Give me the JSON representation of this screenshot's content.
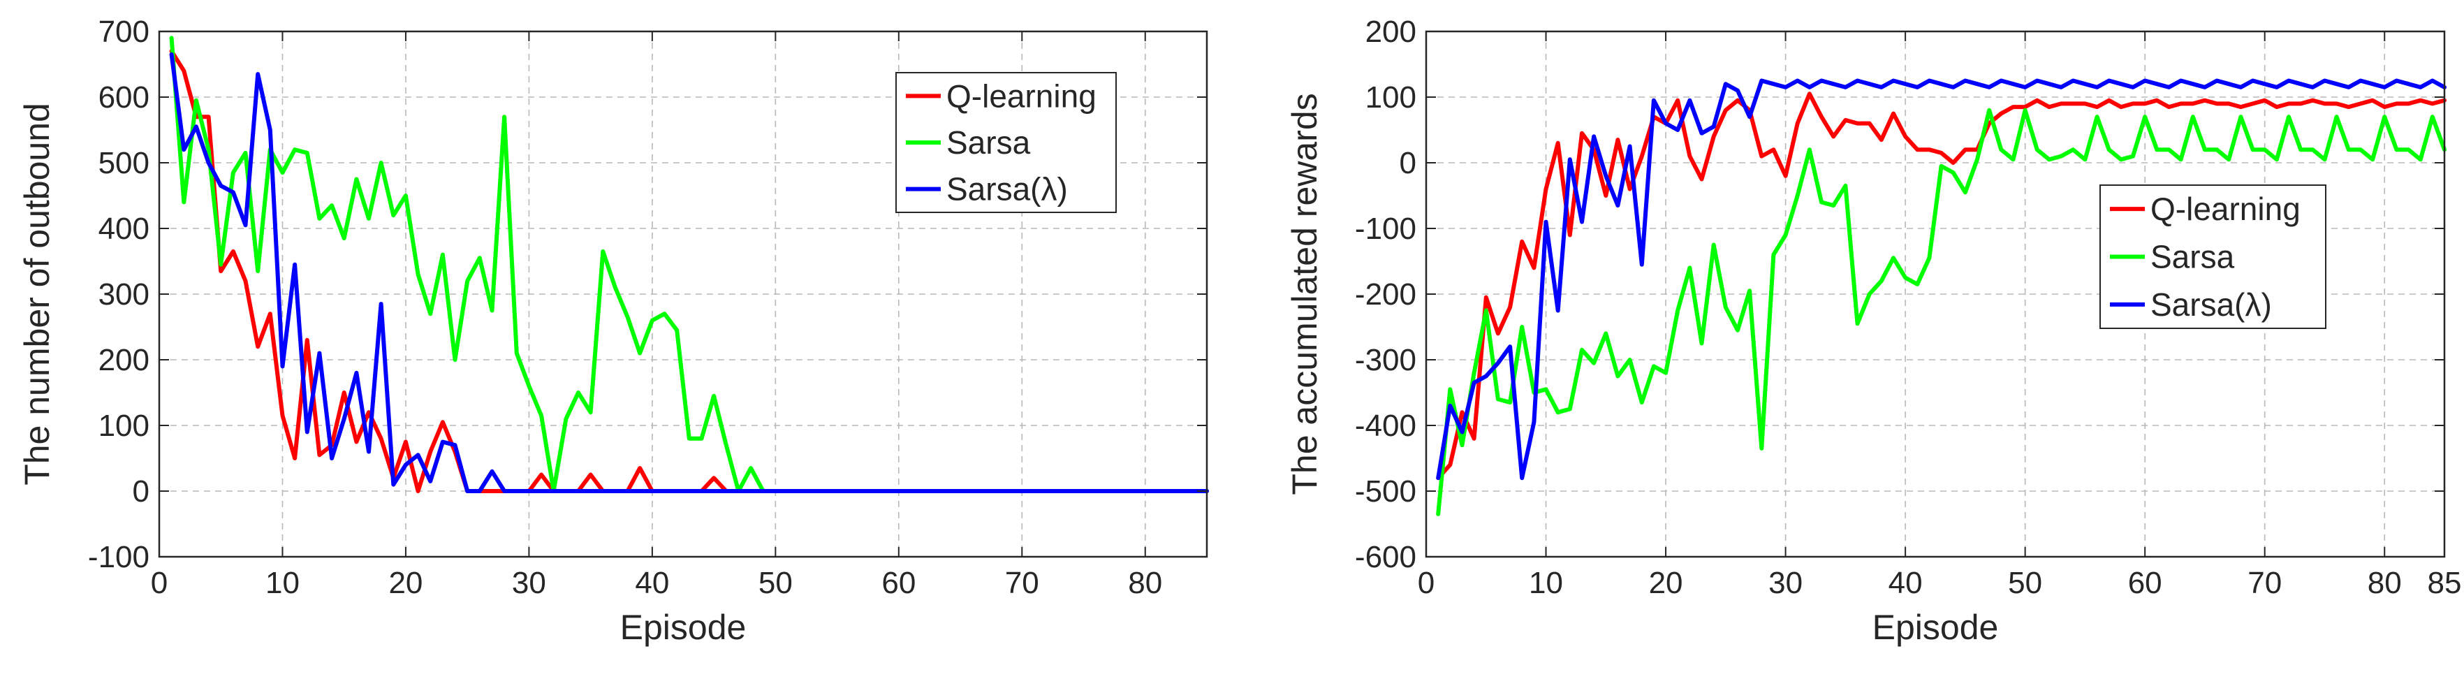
{
  "chart_data": [
    {
      "type": "line",
      "title": "",
      "xlabel": "Episode",
      "ylabel": "The number of outbound",
      "xlim": [
        0,
        85
      ],
      "ylim": [
        -100,
        700
      ],
      "xticks": [
        0,
        10,
        20,
        30,
        40,
        50,
        60,
        70,
        80
      ],
      "yticks": [
        -100,
        0,
        100,
        200,
        300,
        400,
        500,
        600,
        700
      ],
      "grid": true,
      "legend_position": "top-right",
      "x": [
        1,
        2,
        3,
        4,
        5,
        6,
        7,
        8,
        9,
        10,
        11,
        12,
        13,
        14,
        15,
        16,
        17,
        18,
        19,
        20,
        21,
        22,
        23,
        24,
        25,
        26,
        27,
        28,
        29,
        30,
        31,
        32,
        33,
        34,
        35,
        36,
        37,
        38,
        39,
        40,
        41,
        42,
        43,
        44,
        45,
        46,
        47,
        48,
        49,
        50,
        51,
        52,
        53,
        54,
        55,
        56,
        57,
        58,
        59,
        60,
        61,
        62,
        63,
        64,
        65,
        66,
        67,
        68,
        69,
        70,
        71,
        72,
        73,
        74,
        75,
        76,
        77,
        78,
        79,
        80,
        81,
        82,
        83,
        84,
        85
      ],
      "series": [
        {
          "name": "Q-learning",
          "color": "#ff0000",
          "values": [
            670,
            640,
            570,
            570,
            335,
            365,
            320,
            220,
            270,
            115,
            50,
            230,
            55,
            70,
            150,
            75,
            120,
            80,
            20,
            75,
            0,
            60,
            105,
            60,
            0,
            0,
            0,
            0,
            0,
            0,
            25,
            0,
            0,
            0,
            25,
            0,
            0,
            0,
            35,
            0,
            0,
            0,
            0,
            0,
            20,
            0,
            0,
            0,
            0,
            0,
            0,
            0,
            0,
            0,
            0,
            0,
            0,
            0,
            0,
            0,
            0,
            0,
            0,
            0,
            0,
            0,
            0,
            0,
            0,
            0,
            0,
            0,
            0,
            0,
            0,
            0,
            0,
            0,
            0,
            0,
            0,
            0,
            0,
            0,
            0
          ]
        },
        {
          "name": "Sarsa",
          "color": "#00ff00",
          "values": [
            690,
            440,
            595,
            520,
            345,
            485,
            515,
            335,
            520,
            485,
            520,
            515,
            415,
            435,
            385,
            475,
            415,
            500,
            420,
            450,
            330,
            270,
            360,
            200,
            320,
            355,
            275,
            570,
            210,
            160,
            115,
            0,
            110,
            150,
            120,
            365,
            310,
            265,
            210,
            260,
            270,
            245,
            80,
            80,
            145,
            70,
            0,
            35,
            0,
            0,
            0,
            0,
            0,
            0,
            0,
            0,
            0,
            0,
            0,
            0,
            0,
            0,
            0,
            0,
            0,
            0,
            0,
            0,
            0,
            0,
            0,
            0,
            0,
            0,
            0,
            0,
            0,
            0,
            0,
            0,
            0,
            0,
            0,
            0,
            0
          ]
        },
        {
          "name": "Sarsa(λ)",
          "color": "#0000ff",
          "values": [
            665,
            520,
            555,
            500,
            465,
            455,
            405,
            635,
            550,
            190,
            345,
            90,
            210,
            50,
            110,
            180,
            60,
            285,
            10,
            40,
            55,
            15,
            75,
            70,
            0,
            0,
            30,
            0,
            0,
            0,
            0,
            0,
            0,
            0,
            0,
            0,
            0,
            0,
            0,
            0,
            0,
            0,
            0,
            0,
            0,
            0,
            0,
            0,
            0,
            0,
            0,
            0,
            0,
            0,
            0,
            0,
            0,
            0,
            0,
            0,
            0,
            0,
            0,
            0,
            0,
            0,
            0,
            0,
            0,
            0,
            0,
            0,
            0,
            0,
            0,
            0,
            0,
            0,
            0,
            0,
            0,
            0,
            0,
            0,
            0
          ]
        }
      ]
    },
    {
      "type": "line",
      "title": "",
      "xlabel": "Episode",
      "ylabel": "The accumulated rewards",
      "xlim": [
        0,
        85
      ],
      "ylim": [
        -600,
        200
      ],
      "xticks": [
        0,
        10,
        20,
        30,
        40,
        50,
        60,
        70,
        80,
        85
      ],
      "yticks": [
        -600,
        -500,
        -400,
        -300,
        -200,
        -100,
        0,
        100,
        200
      ],
      "grid": true,
      "legend_position": "center-right",
      "x": [
        1,
        2,
        3,
        4,
        5,
        6,
        7,
        8,
        9,
        10,
        11,
        12,
        13,
        14,
        15,
        16,
        17,
        18,
        19,
        20,
        21,
        22,
        23,
        24,
        25,
        26,
        27,
        28,
        29,
        30,
        31,
        32,
        33,
        34,
        35,
        36,
        37,
        38,
        39,
        40,
        41,
        42,
        43,
        44,
        45,
        46,
        47,
        48,
        49,
        50,
        51,
        52,
        53,
        54,
        55,
        56,
        57,
        58,
        59,
        60,
        61,
        62,
        63,
        64,
        65,
        66,
        67,
        68,
        69,
        70,
        71,
        72,
        73,
        74,
        75,
        76,
        77,
        78,
        79,
        80,
        81,
        82,
        83,
        84,
        85
      ],
      "series": [
        {
          "name": "Q-learning",
          "color": "#ff0000",
          "values": [
            -480,
            -460,
            -380,
            -420,
            -205,
            -260,
            -220,
            -120,
            -160,
            -40,
            30,
            -110,
            45,
            20,
            -50,
            35,
            -40,
            10,
            70,
            60,
            95,
            10,
            -25,
            40,
            80,
            95,
            80,
            10,
            20,
            -20,
            60,
            105,
            70,
            40,
            65,
            60,
            60,
            35,
            75,
            40,
            20,
            20,
            15,
            0,
            20,
            20,
            60,
            75,
            85,
            85,
            95,
            85,
            90,
            90,
            90,
            85,
            95,
            85,
            90,
            90,
            95,
            85,
            90,
            90,
            95,
            90,
            90,
            85,
            90,
            95,
            85,
            90,
            90,
            95,
            90,
            90,
            85,
            90,
            95,
            85,
            90,
            90,
            95,
            90,
            95
          ]
        },
        {
          "name": "Sarsa",
          "color": "#00ff00",
          "values": [
            -535,
            -345,
            -430,
            -320,
            -225,
            -360,
            -365,
            -250,
            -350,
            -345,
            -380,
            -375,
            -285,
            -305,
            -260,
            -325,
            -300,
            -365,
            -310,
            -320,
            -225,
            -160,
            -275,
            -125,
            -220,
            -255,
            -195,
            -435,
            -140,
            -110,
            -50,
            20,
            -60,
            -65,
            -35,
            -245,
            -200,
            -180,
            -145,
            -175,
            -185,
            -145,
            -5,
            -15,
            -45,
            5,
            80,
            20,
            5,
            80,
            20,
            5,
            10,
            20,
            5,
            70,
            20,
            5,
            10,
            70,
            20,
            20,
            5,
            70,
            20,
            20,
            5,
            70,
            20,
            20,
            5,
            70,
            20,
            20,
            5,
            70,
            20,
            20,
            5,
            70,
            20,
            20,
            5,
            70,
            20
          ]
        },
        {
          "name": "Sarsa(λ)",
          "color": "#0000ff",
          "values": [
            -480,
            -370,
            -410,
            -335,
            -325,
            -305,
            -280,
            -480,
            -395,
            -90,
            -225,
            5,
            -90,
            40,
            -20,
            -65,
            25,
            -155,
            95,
            60,
            50,
            95,
            45,
            55,
            120,
            110,
            70,
            125,
            120,
            115,
            125,
            115,
            125,
            120,
            115,
            125,
            120,
            115,
            125,
            120,
            115,
            125,
            120,
            115,
            125,
            120,
            115,
            125,
            120,
            115,
            125,
            120,
            115,
            125,
            120,
            115,
            125,
            120,
            115,
            125,
            120,
            115,
            125,
            120,
            115,
            125,
            120,
            115,
            125,
            120,
            115,
            125,
            120,
            115,
            125,
            120,
            115,
            125,
            120,
            115,
            125,
            120,
            115,
            125,
            115
          ]
        }
      ]
    }
  ]
}
